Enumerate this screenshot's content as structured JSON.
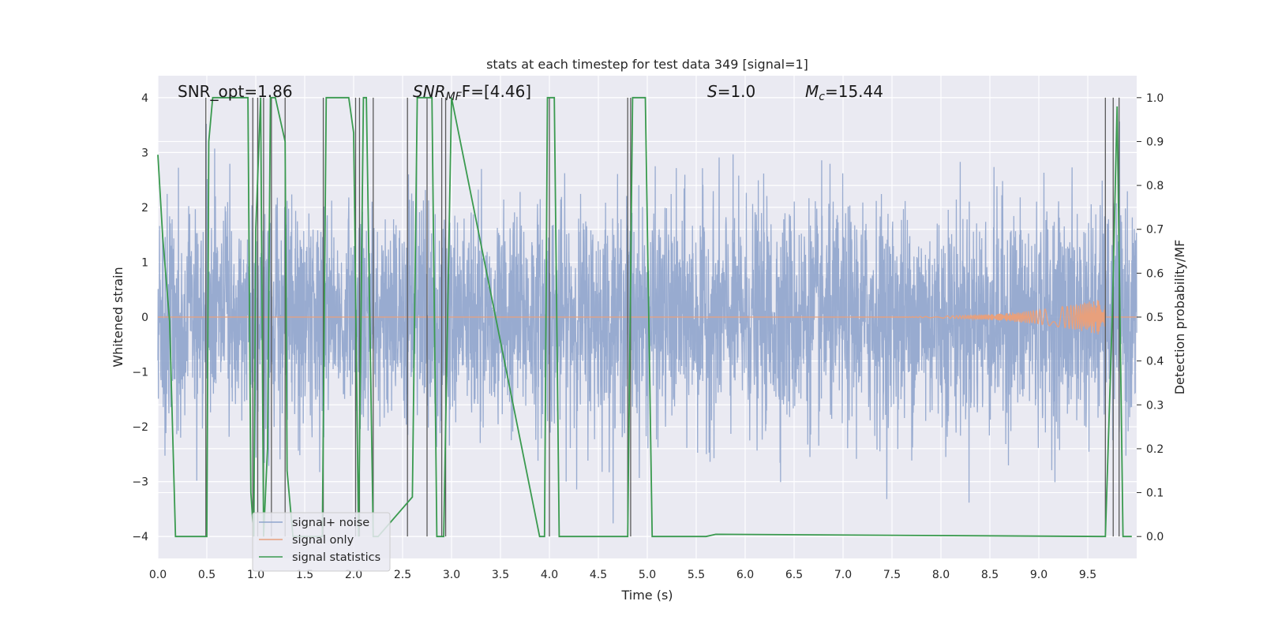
{
  "chart_data": {
    "type": "line",
    "title": "stats at each timestep for test data 349 [signal=1]",
    "xlabel": "Time (s)",
    "ylabel": "Whitened strain",
    "ylabel_right": "Detection probability/MF",
    "xlim": [
      0.0,
      10.0
    ],
    "ylim": [
      -4.4,
      4.4
    ],
    "ylim_right": [
      -0.05,
      1.05
    ],
    "grid": true,
    "legend_position": "bottom-left",
    "x_ticks": [
      "0.0",
      "0.5",
      "1.0",
      "1.5",
      "2.0",
      "2.5",
      "3.0",
      "3.5",
      "4.0",
      "4.5",
      "5.0",
      "5.5",
      "6.0",
      "6.5",
      "7.0",
      "7.5",
      "8.0",
      "8.5",
      "9.0",
      "9.5"
    ],
    "y_ticks": [
      "4",
      "3",
      "2",
      "1",
      "0",
      "−1",
      "−2",
      "−3",
      "−4"
    ],
    "y_ticks_right": [
      "1.0",
      "0.9",
      "0.8",
      "0.7",
      "0.6",
      "0.5",
      "0.4",
      "0.3",
      "0.2",
      "0.1",
      "0.0"
    ],
    "annotations": {
      "snr_opt": "SNR_opt=1.86",
      "snr_mf_prefix": "SNR",
      "snr_mf_sub": "MF",
      "snr_mf_suffix": "F=[4.46]",
      "s_prefix": "S",
      "s_suffix": "=1.0",
      "mc_prefix": "M",
      "mc_sub": "c",
      "mc_suffix": "=15.44"
    },
    "series": [
      {
        "name": "signal+ noise",
        "color": "#8fa4cc",
        "description_axis": "left",
        "noise_std": 1.0,
        "noise_extremes": [
          -4.1,
          3.9
        ]
      },
      {
        "name": "signal only",
        "color": "#e8a07c",
        "description_axis": "left",
        "chirp_start": 6.5,
        "chirp_end": 9.68,
        "chirp_peak_amplitude": 0.35
      },
      {
        "name": "signal statistics",
        "color": "#3a9a4f",
        "description_axis": "right",
        "x": [
          0.0,
          0.05,
          0.12,
          0.18,
          0.5,
          0.52,
          0.56,
          0.92,
          0.95,
          0.98,
          1.0,
          1.05,
          1.08,
          1.12,
          1.15,
          1.2,
          1.3,
          1.32,
          1.38,
          1.68,
          1.72,
          1.95,
          2.0,
          2.05,
          2.1,
          2.13,
          2.2,
          2.25,
          2.6,
          2.65,
          2.8,
          2.85,
          2.92,
          3.0,
          3.9,
          3.95,
          3.98,
          4.05,
          4.1,
          4.8,
          4.85,
          4.98,
          5.05,
          5.6,
          5.7,
          9.68,
          9.75,
          9.8,
          9.82,
          9.86,
          9.9,
          9.95
        ],
        "y": [
          0.87,
          0.68,
          0.49,
          0.0,
          0.0,
          0.9,
          1.0,
          1.0,
          0.1,
          0.0,
          0.7,
          1.0,
          0.0,
          0.2,
          1.0,
          1.0,
          0.9,
          0.15,
          0.0,
          0.0,
          1.0,
          1.0,
          0.92,
          0.0,
          1.0,
          1.0,
          0.0,
          0.0,
          0.09,
          1.0,
          1.0,
          0.0,
          0.0,
          1.0,
          0.0,
          0.0,
          1.0,
          1.0,
          0.0,
          0.0,
          1.0,
          1.0,
          0.0,
          0.0,
          0.005,
          0.0,
          0.5,
          0.98,
          0.65,
          0.0,
          0.0,
          0.0
        ]
      }
    ],
    "vertical_lines_x": [
      0.49,
      0.97,
      1.02,
      1.08,
      1.16,
      1.3,
      1.69,
      2.02,
      2.06,
      2.2,
      2.55,
      2.75,
      2.9,
      2.94,
      4.0,
      4.8,
      4.83,
      9.68,
      9.76,
      9.82
    ]
  }
}
